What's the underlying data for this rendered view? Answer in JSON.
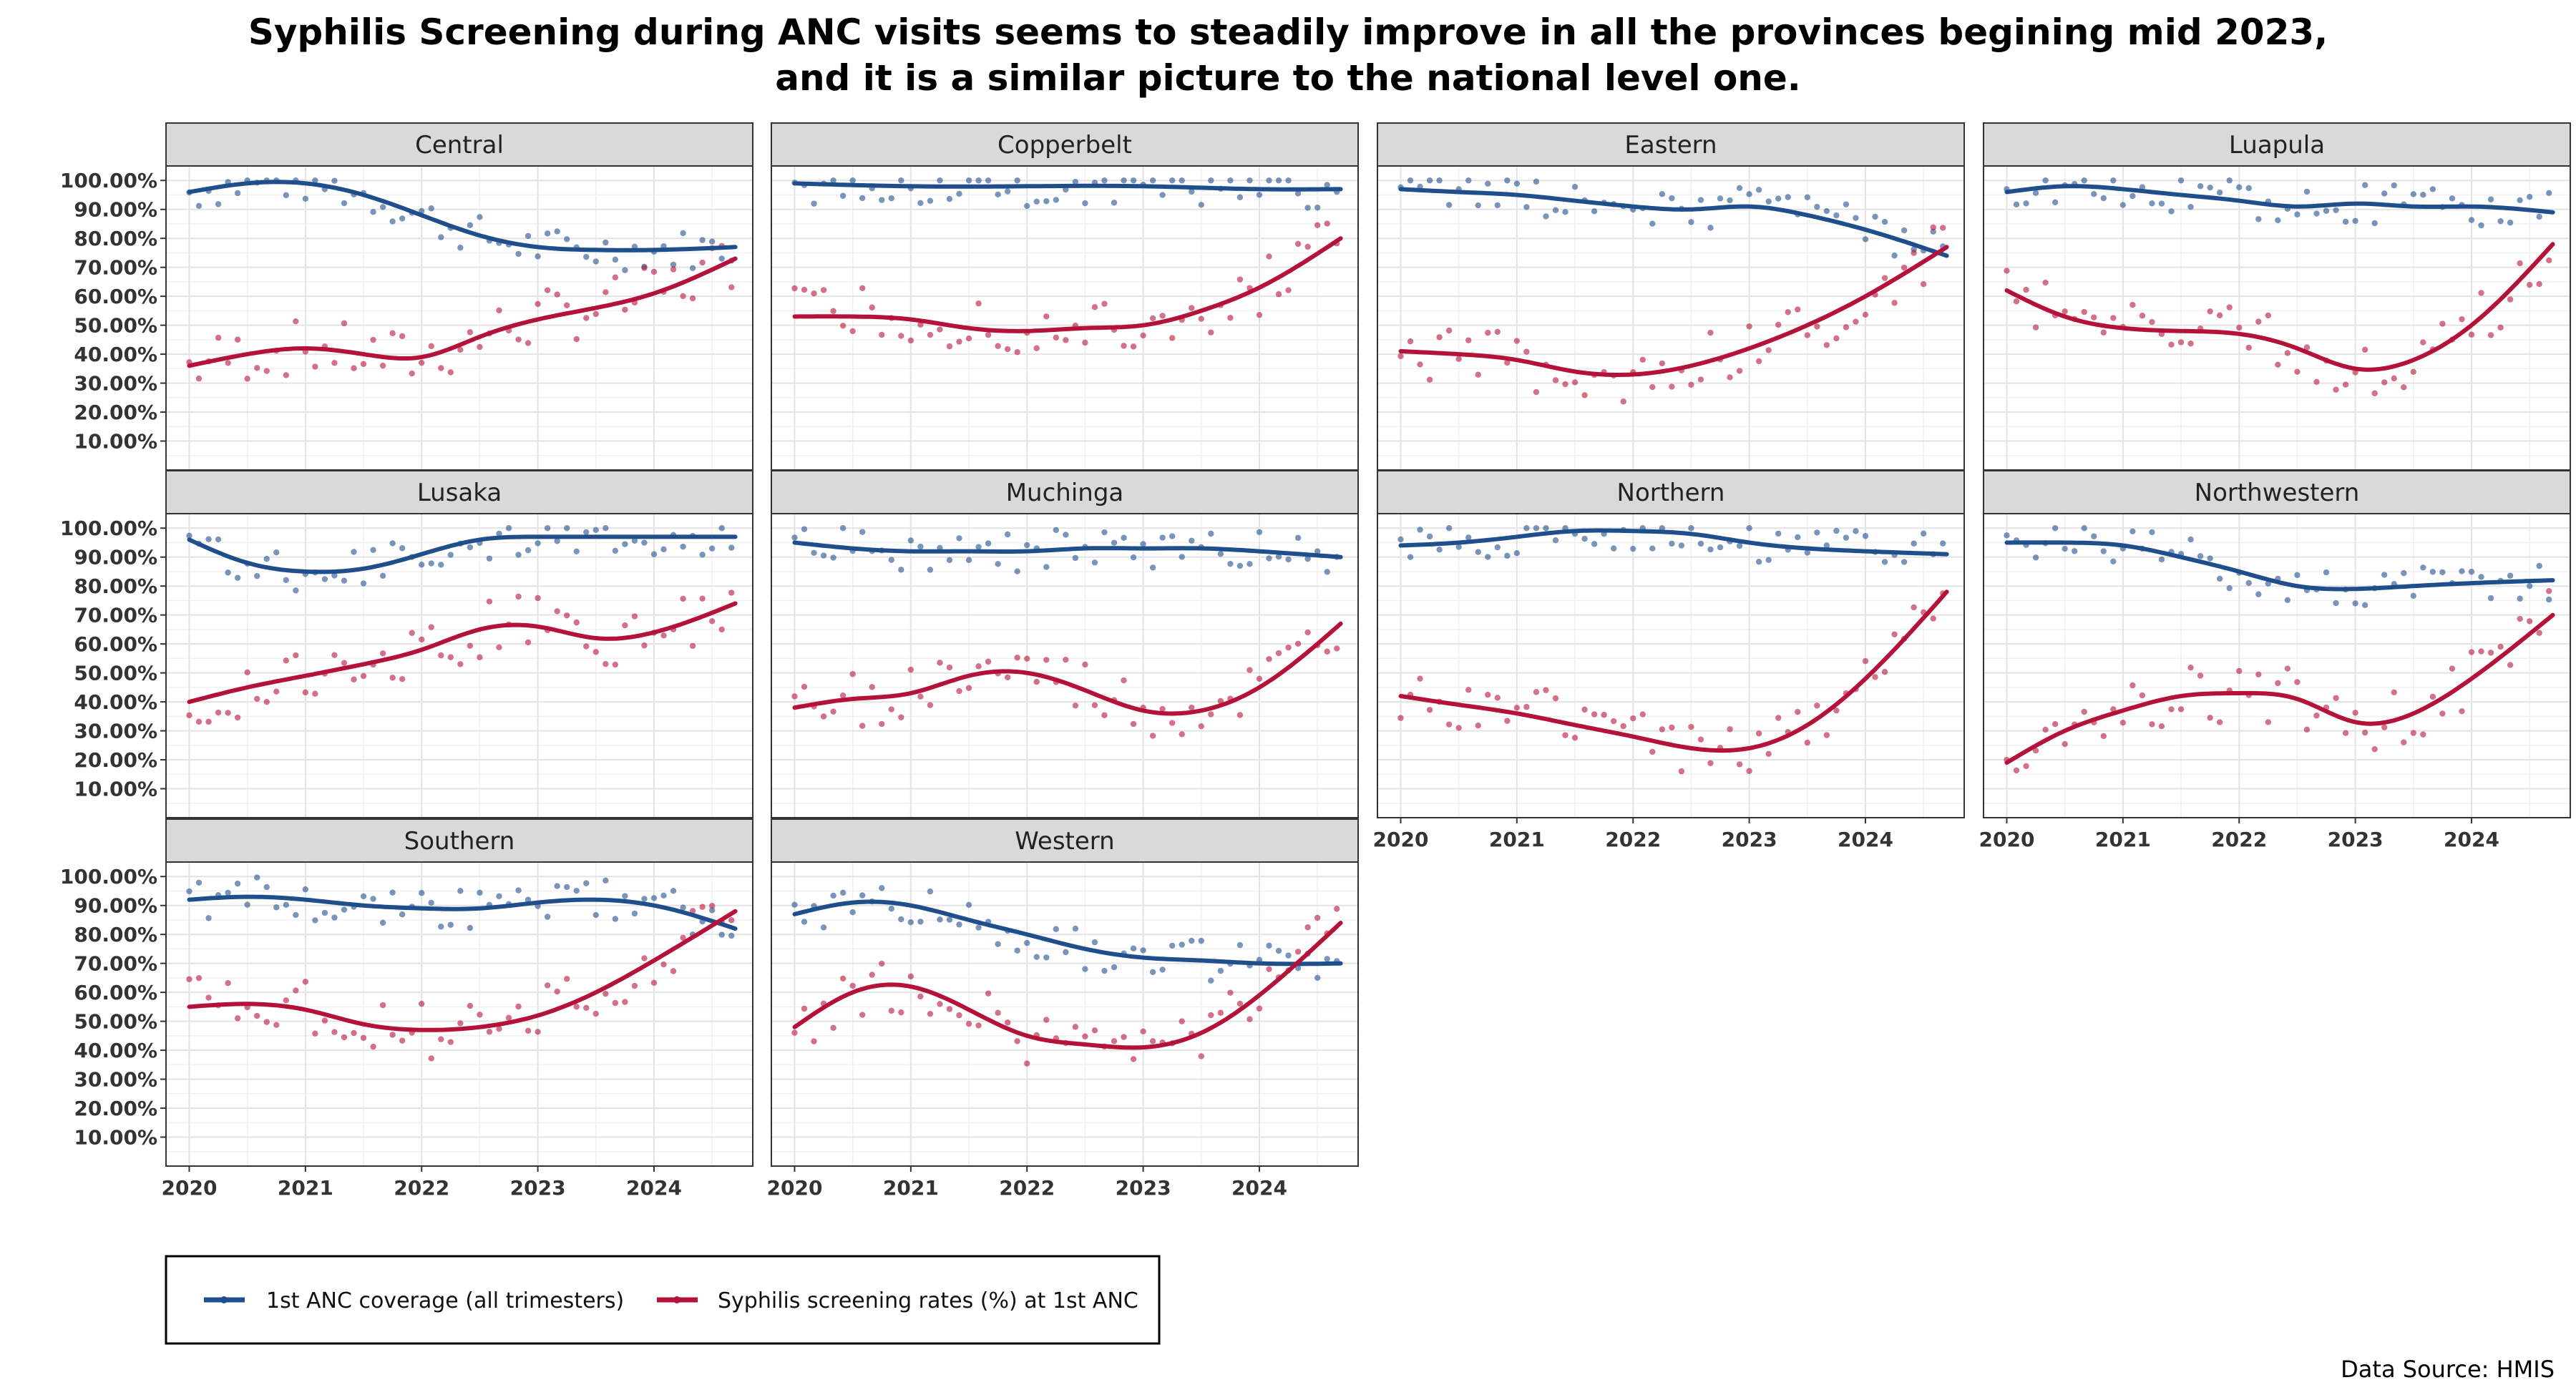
{
  "chart_data": {
    "type": "scatter",
    "title_lines": [
      "Syphilis Screening during ANC visits seems to steadily improve in all the provinces begining mid 2023,",
      "and it is a similar picture to the national level one."
    ],
    "source": "Data Source: HMIS",
    "x_ticks": [
      "2020",
      "2021",
      "2022",
      "2023",
      "2024"
    ],
    "y_ticks": [
      "10.00%",
      "20.00%",
      "30.00%",
      "40.00%",
      "50.00%",
      "60.00%",
      "70.00%",
      "80.00%",
      "90.00%",
      "100.00%"
    ],
    "xlim": [
      2019.8,
      2024.85
    ],
    "ylim": [
      0.0,
      1.05
    ],
    "grid": true,
    "legend_position": "bottom-left",
    "colors": {
      "coverage": "#1f4e8c",
      "screening": "#b5123a"
    },
    "series_names": [
      "1st ANC coverage (all trimesters)",
      "Syphilis screening rates (%) at 1st ANC"
    ],
    "panels": [
      {
        "name": "Central",
        "coverage_trend": [
          [
            2020.0,
            0.96
          ],
          [
            2020.5,
            0.99
          ],
          [
            2021.0,
            0.99
          ],
          [
            2021.5,
            0.95
          ],
          [
            2022.0,
            0.88
          ],
          [
            2022.5,
            0.81
          ],
          [
            2023.0,
            0.77
          ],
          [
            2023.5,
            0.76
          ],
          [
            2024.0,
            0.76
          ],
          [
            2024.7,
            0.77
          ]
        ],
        "screening_trend": [
          [
            2020.0,
            0.36
          ],
          [
            2020.5,
            0.4
          ],
          [
            2021.0,
            0.42
          ],
          [
            2021.5,
            0.4
          ],
          [
            2022.0,
            0.39
          ],
          [
            2022.5,
            0.46
          ],
          [
            2023.0,
            0.52
          ],
          [
            2023.5,
            0.56
          ],
          [
            2024.0,
            0.61
          ],
          [
            2024.7,
            0.73
          ]
        ]
      },
      {
        "name": "Copperbelt",
        "coverage_trend": [
          [
            2020.0,
            0.99
          ],
          [
            2021.0,
            0.98
          ],
          [
            2022.0,
            0.98
          ],
          [
            2023.0,
            0.98
          ],
          [
            2024.0,
            0.97
          ],
          [
            2024.7,
            0.97
          ]
        ],
        "screening_trend": [
          [
            2020.0,
            0.53
          ],
          [
            2020.5,
            0.53
          ],
          [
            2021.0,
            0.52
          ],
          [
            2021.5,
            0.49
          ],
          [
            2022.0,
            0.48
          ],
          [
            2022.5,
            0.49
          ],
          [
            2023.0,
            0.5
          ],
          [
            2023.5,
            0.55
          ],
          [
            2024.0,
            0.63
          ],
          [
            2024.7,
            0.8
          ]
        ]
      },
      {
        "name": "Eastern",
        "coverage_trend": [
          [
            2020.0,
            0.97
          ],
          [
            2020.5,
            0.96
          ],
          [
            2021.0,
            0.95
          ],
          [
            2021.5,
            0.93
          ],
          [
            2022.0,
            0.91
          ],
          [
            2022.5,
            0.9
          ],
          [
            2023.0,
            0.91
          ],
          [
            2023.5,
            0.88
          ],
          [
            2024.0,
            0.83
          ],
          [
            2024.7,
            0.74
          ]
        ],
        "screening_trend": [
          [
            2020.0,
            0.41
          ],
          [
            2020.5,
            0.4
          ],
          [
            2021.0,
            0.38
          ],
          [
            2021.5,
            0.34
          ],
          [
            2022.0,
            0.33
          ],
          [
            2022.5,
            0.36
          ],
          [
            2023.0,
            0.42
          ],
          [
            2023.5,
            0.5
          ],
          [
            2024.0,
            0.6
          ],
          [
            2024.7,
            0.77
          ]
        ]
      },
      {
        "name": "Luapula",
        "coverage_trend": [
          [
            2020.0,
            0.96
          ],
          [
            2020.5,
            0.98
          ],
          [
            2021.0,
            0.97
          ],
          [
            2021.5,
            0.95
          ],
          [
            2022.0,
            0.93
          ],
          [
            2022.5,
            0.91
          ],
          [
            2023.0,
            0.92
          ],
          [
            2023.5,
            0.91
          ],
          [
            2024.0,
            0.91
          ],
          [
            2024.7,
            0.89
          ]
        ],
        "screening_trend": [
          [
            2020.0,
            0.62
          ],
          [
            2020.5,
            0.53
          ],
          [
            2021.0,
            0.49
          ],
          [
            2021.5,
            0.48
          ],
          [
            2022.0,
            0.47
          ],
          [
            2022.5,
            0.42
          ],
          [
            2023.0,
            0.35
          ],
          [
            2023.5,
            0.38
          ],
          [
            2024.0,
            0.5
          ],
          [
            2024.7,
            0.78
          ]
        ]
      },
      {
        "name": "Lusaka",
        "coverage_trend": [
          [
            2020.0,
            0.96
          ],
          [
            2020.5,
            0.88
          ],
          [
            2021.0,
            0.85
          ],
          [
            2021.5,
            0.86
          ],
          [
            2022.0,
            0.91
          ],
          [
            2022.5,
            0.96
          ],
          [
            2023.0,
            0.97
          ],
          [
            2023.5,
            0.97
          ],
          [
            2024.0,
            0.97
          ],
          [
            2024.7,
            0.97
          ]
        ],
        "screening_trend": [
          [
            2020.0,
            0.4
          ],
          [
            2020.5,
            0.45
          ],
          [
            2021.0,
            0.49
          ],
          [
            2021.5,
            0.53
          ],
          [
            2022.0,
            0.58
          ],
          [
            2022.5,
            0.65
          ],
          [
            2023.0,
            0.66
          ],
          [
            2023.5,
            0.62
          ],
          [
            2024.0,
            0.64
          ],
          [
            2024.7,
            0.74
          ]
        ]
      },
      {
        "name": "Muchinga",
        "coverage_trend": [
          [
            2020.0,
            0.95
          ],
          [
            2020.5,
            0.93
          ],
          [
            2021.0,
            0.92
          ],
          [
            2021.5,
            0.92
          ],
          [
            2022.0,
            0.92
          ],
          [
            2022.5,
            0.93
          ],
          [
            2023.0,
            0.93
          ],
          [
            2023.5,
            0.93
          ],
          [
            2024.0,
            0.92
          ],
          [
            2024.7,
            0.9
          ]
        ],
        "screening_trend": [
          [
            2020.0,
            0.38
          ],
          [
            2020.5,
            0.41
          ],
          [
            2021.0,
            0.43
          ],
          [
            2021.5,
            0.49
          ],
          [
            2022.0,
            0.5
          ],
          [
            2022.5,
            0.44
          ],
          [
            2023.0,
            0.37
          ],
          [
            2023.5,
            0.37
          ],
          [
            2024.0,
            0.45
          ],
          [
            2024.7,
            0.67
          ]
        ]
      },
      {
        "name": "Northern",
        "coverage_trend": [
          [
            2020.0,
            0.94
          ],
          [
            2020.5,
            0.95
          ],
          [
            2021.0,
            0.97
          ],
          [
            2021.5,
            0.99
          ],
          [
            2022.0,
            0.99
          ],
          [
            2022.5,
            0.98
          ],
          [
            2023.0,
            0.95
          ],
          [
            2023.5,
            0.93
          ],
          [
            2024.0,
            0.92
          ],
          [
            2024.7,
            0.91
          ]
        ],
        "screening_trend": [
          [
            2020.0,
            0.42
          ],
          [
            2020.5,
            0.39
          ],
          [
            2021.0,
            0.36
          ],
          [
            2021.5,
            0.32
          ],
          [
            2022.0,
            0.28
          ],
          [
            2022.5,
            0.24
          ],
          [
            2023.0,
            0.24
          ],
          [
            2023.5,
            0.32
          ],
          [
            2024.0,
            0.48
          ],
          [
            2024.7,
            0.78
          ]
        ]
      },
      {
        "name": "Northwestern",
        "coverage_trend": [
          [
            2020.0,
            0.95
          ],
          [
            2020.5,
            0.95
          ],
          [
            2021.0,
            0.94
          ],
          [
            2021.5,
            0.9
          ],
          [
            2022.0,
            0.85
          ],
          [
            2022.5,
            0.8
          ],
          [
            2023.0,
            0.79
          ],
          [
            2023.5,
            0.8
          ],
          [
            2024.0,
            0.81
          ],
          [
            2024.7,
            0.82
          ]
        ],
        "screening_trend": [
          [
            2020.0,
            0.19
          ],
          [
            2020.5,
            0.3
          ],
          [
            2021.0,
            0.37
          ],
          [
            2021.5,
            0.42
          ],
          [
            2022.0,
            0.43
          ],
          [
            2022.5,
            0.41
          ],
          [
            2023.0,
            0.33
          ],
          [
            2023.5,
            0.36
          ],
          [
            2024.0,
            0.48
          ],
          [
            2024.7,
            0.7
          ]
        ]
      },
      {
        "name": "Southern",
        "coverage_trend": [
          [
            2020.0,
            0.92
          ],
          [
            2020.5,
            0.93
          ],
          [
            2021.0,
            0.92
          ],
          [
            2021.5,
            0.9
          ],
          [
            2022.0,
            0.89
          ],
          [
            2022.5,
            0.89
          ],
          [
            2023.0,
            0.91
          ],
          [
            2023.5,
            0.92
          ],
          [
            2024.0,
            0.9
          ],
          [
            2024.7,
            0.82
          ]
        ],
        "screening_trend": [
          [
            2020.0,
            0.55
          ],
          [
            2020.5,
            0.56
          ],
          [
            2021.0,
            0.54
          ],
          [
            2021.5,
            0.49
          ],
          [
            2022.0,
            0.47
          ],
          [
            2022.5,
            0.48
          ],
          [
            2023.0,
            0.52
          ],
          [
            2023.5,
            0.6
          ],
          [
            2024.0,
            0.71
          ],
          [
            2024.7,
            0.88
          ]
        ]
      },
      {
        "name": "Western",
        "coverage_trend": [
          [
            2020.0,
            0.87
          ],
          [
            2020.5,
            0.91
          ],
          [
            2021.0,
            0.9
          ],
          [
            2021.5,
            0.85
          ],
          [
            2022.0,
            0.8
          ],
          [
            2022.5,
            0.75
          ],
          [
            2023.0,
            0.72
          ],
          [
            2023.5,
            0.71
          ],
          [
            2024.0,
            0.7
          ],
          [
            2024.7,
            0.7
          ]
        ],
        "screening_trend": [
          [
            2020.0,
            0.48
          ],
          [
            2020.5,
            0.6
          ],
          [
            2021.0,
            0.62
          ],
          [
            2021.5,
            0.54
          ],
          [
            2022.0,
            0.45
          ],
          [
            2022.5,
            0.42
          ],
          [
            2023.0,
            0.41
          ],
          [
            2023.5,
            0.46
          ],
          [
            2024.0,
            0.59
          ],
          [
            2024.7,
            0.84
          ]
        ]
      }
    ]
  }
}
